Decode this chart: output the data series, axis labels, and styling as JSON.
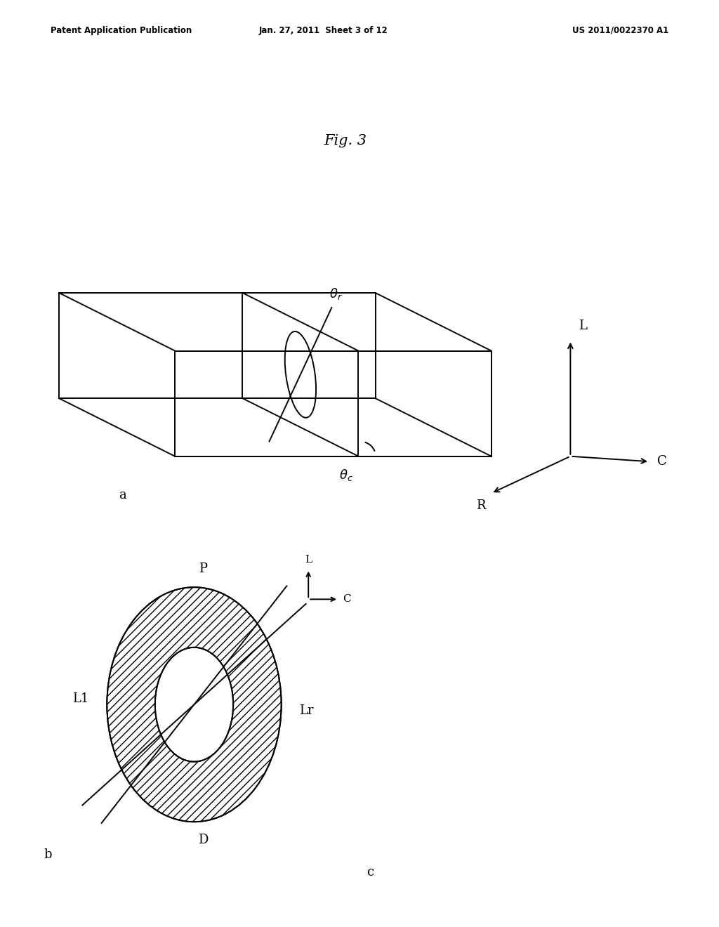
{
  "header_left": "Patent Application Publication",
  "header_mid": "Jan. 27, 2011  Sheet 3 of 12",
  "header_right": "US 2011/0022370 A1",
  "fig_label": "Fig. 3",
  "sub_a_label": "a",
  "sub_b_label": "b",
  "sub_c_label": "c",
  "bg_color": "#ffffff",
  "line_color": "#000000"
}
